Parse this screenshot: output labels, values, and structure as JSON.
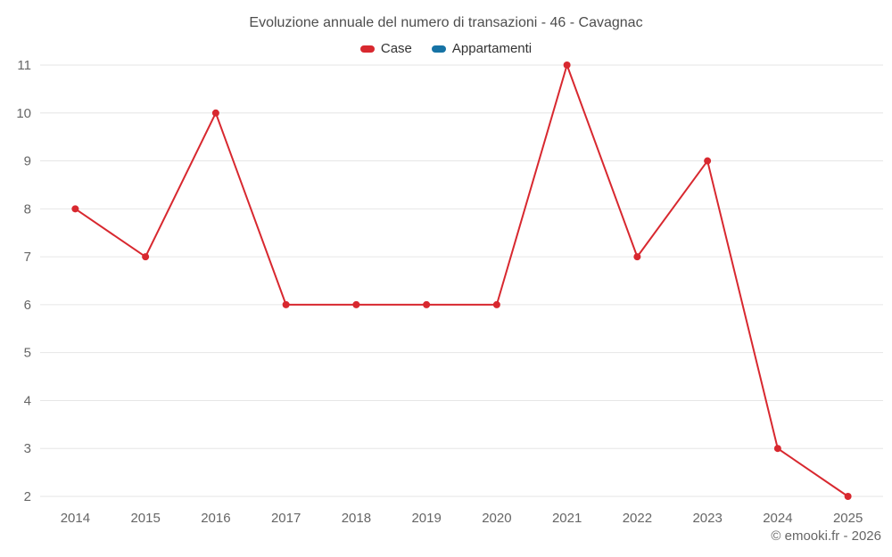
{
  "chart_data": {
    "type": "line",
    "title": "Evoluzione annuale del numero di transazioni - 46 - Cavagnac",
    "categories": [
      "2014",
      "2015",
      "2016",
      "2017",
      "2018",
      "2019",
      "2020",
      "2021",
      "2022",
      "2023",
      "2024",
      "2025"
    ],
    "series": [
      {
        "name": "Case",
        "color": "#d8282f",
        "values": [
          8,
          7,
          10,
          6,
          6,
          6,
          6,
          11,
          7,
          9,
          3,
          2
        ]
      },
      {
        "name": "Appartamenti",
        "color": "#1673a5",
        "values": []
      }
    ],
    "ylim": [
      2,
      11
    ],
    "y_ticks": [
      2,
      3,
      4,
      5,
      6,
      7,
      8,
      9,
      10,
      11
    ],
    "xlabel": "",
    "ylabel": "",
    "grid": "horizontal",
    "legend_position": "top"
  },
  "footer": {
    "copyright": "© emooki.fr - 2026"
  },
  "colors": {
    "background": "#ffffff",
    "grid": "#e6e6e6",
    "axis_text": "#666666",
    "title_text": "#4d4d4d",
    "marker_red": "#d8282f",
    "legend_blue": "#1673a5"
  }
}
